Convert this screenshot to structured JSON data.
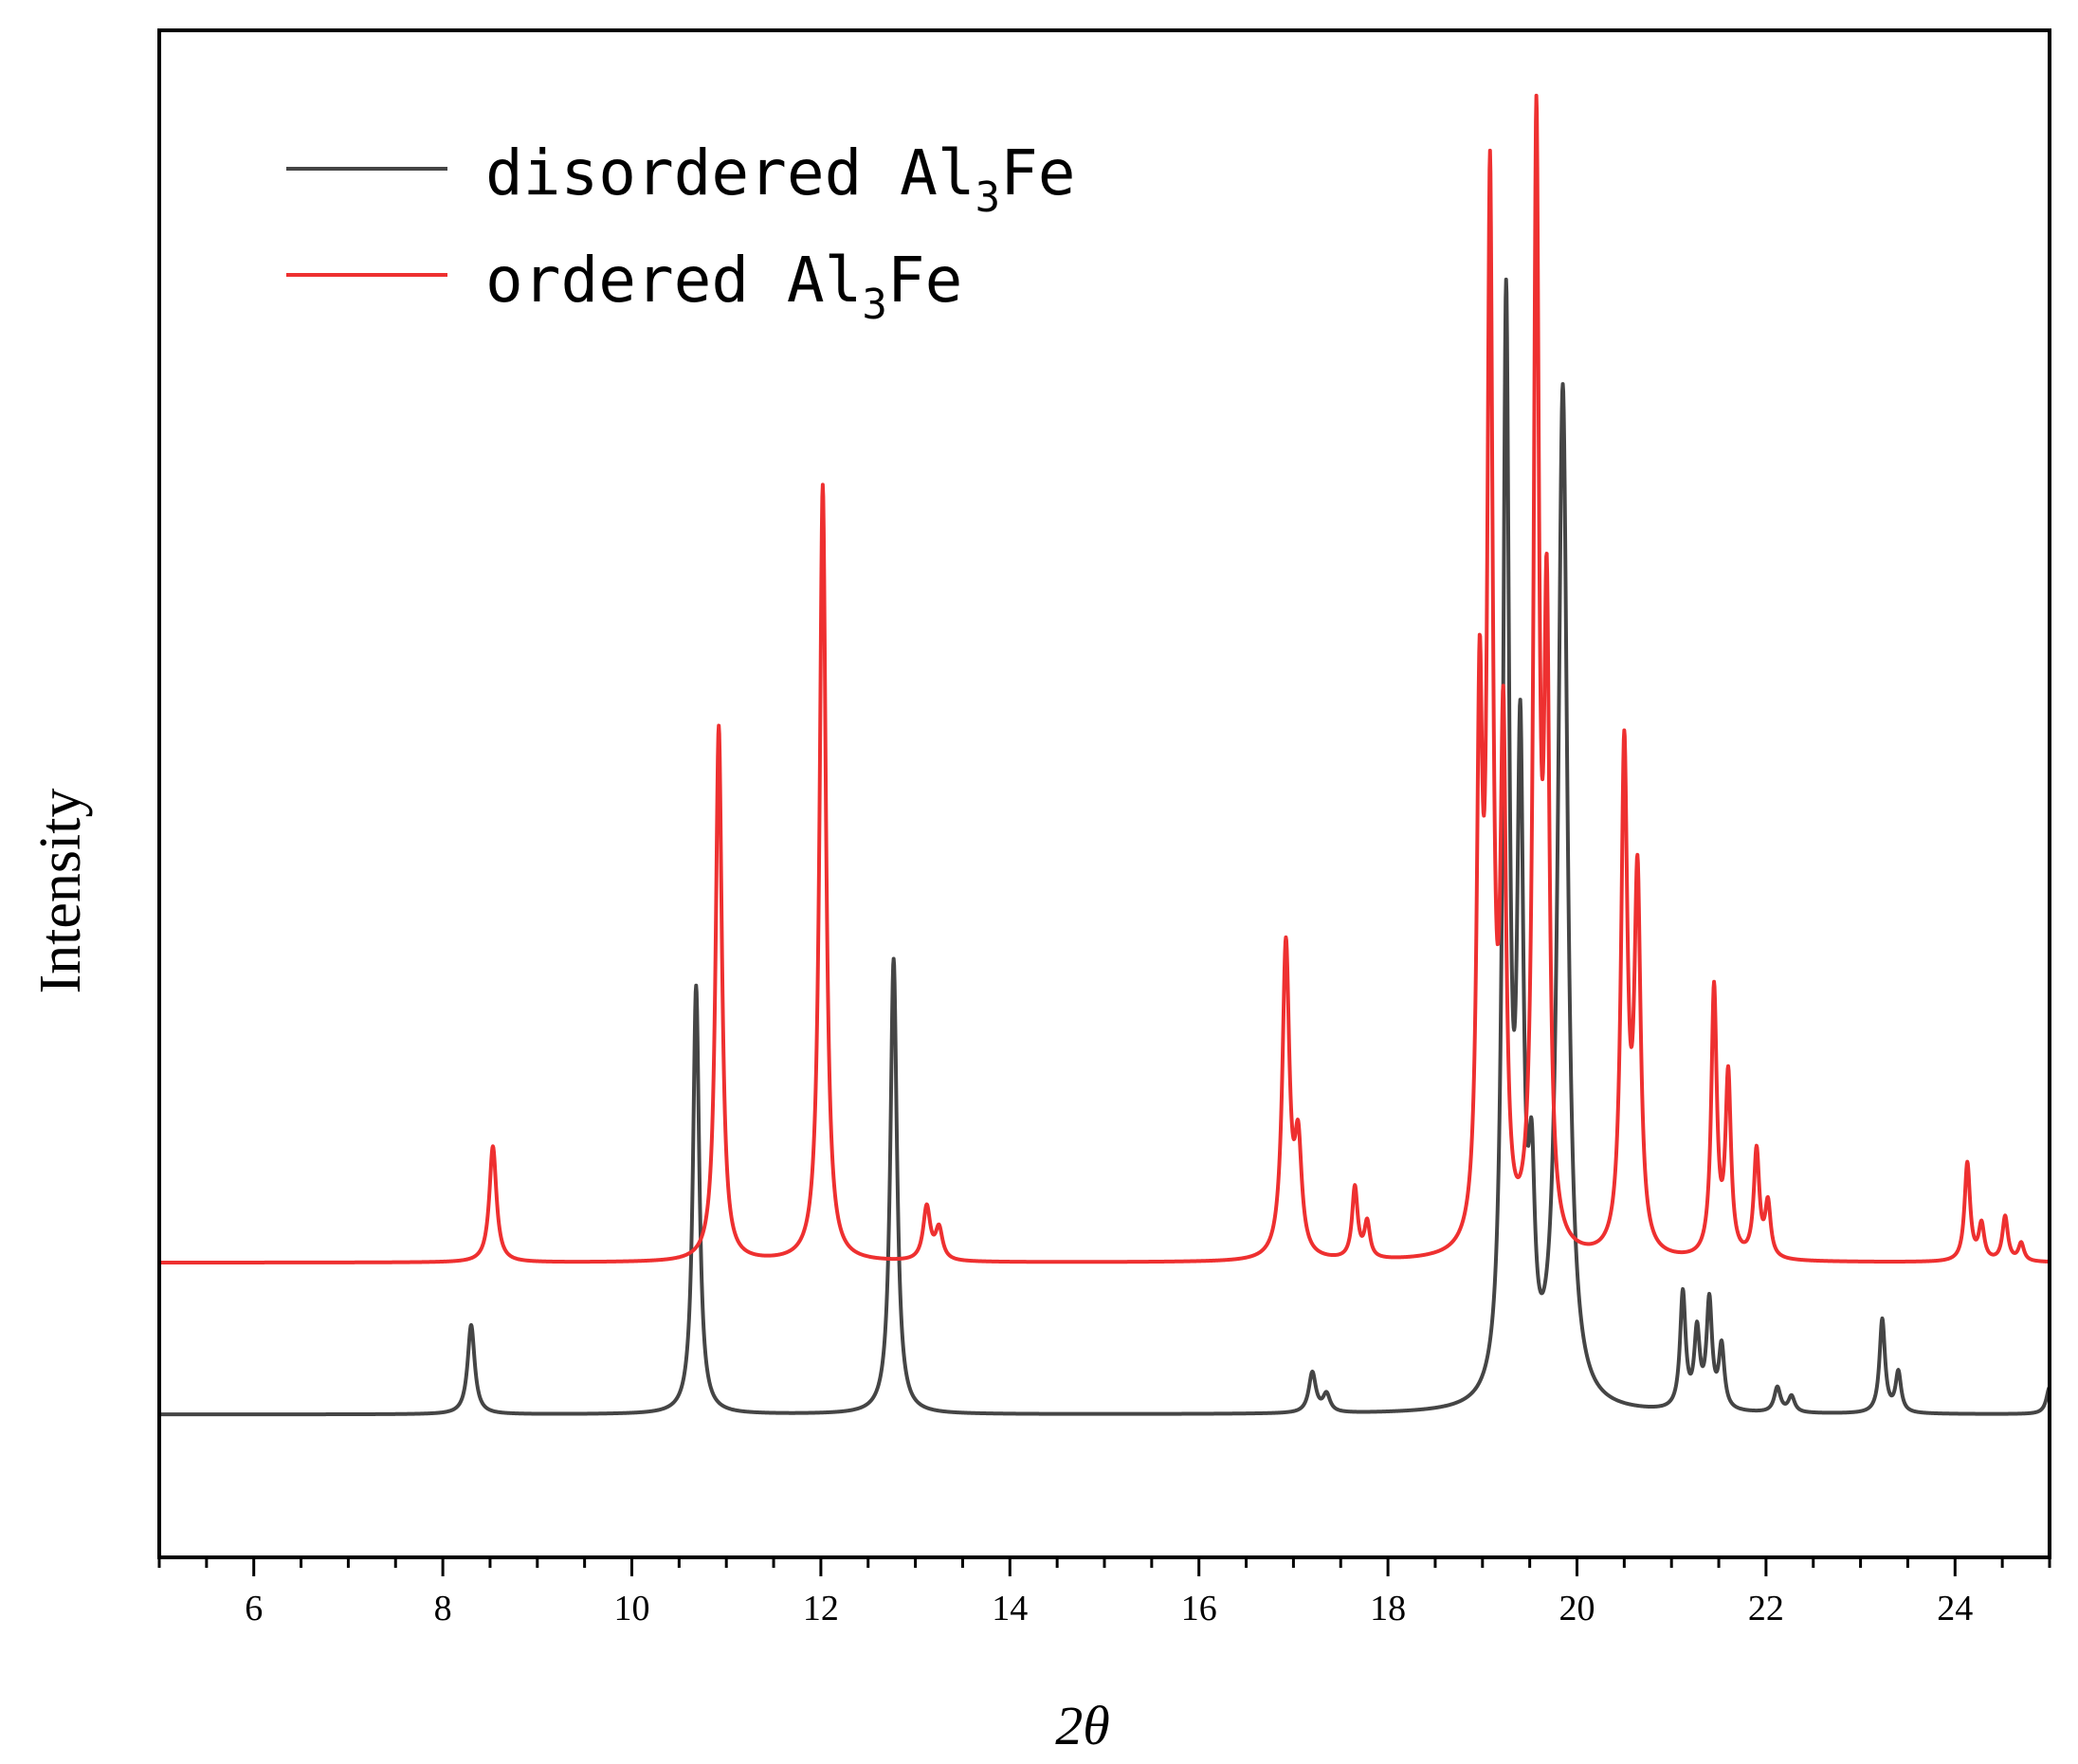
{
  "chart_data": {
    "type": "line",
    "title": "",
    "xlabel": "2θ",
    "ylabel": "Intensity",
    "xlim": [
      5,
      25
    ],
    "ylim": [
      -0.16,
      1.55
    ],
    "x_ticks": [
      6,
      8,
      10,
      12,
      14,
      16,
      18,
      20,
      22,
      24
    ],
    "y_ticks": [],
    "grid": false,
    "legend_position": "top-left",
    "series": [
      {
        "name": "disordered Al3Fe",
        "legend_main": "disordered Al",
        "legend_sub": "3",
        "legend_tail": "Fe",
        "color": "#454545",
        "baseline": 0.0,
        "peaks": [
          {
            "x": 8.3,
            "h": 0.1,
            "w": 0.045
          },
          {
            "x": 10.68,
            "h": 0.48,
            "w": 0.04
          },
          {
            "x": 12.77,
            "h": 0.51,
            "w": 0.042
          },
          {
            "x": 17.2,
            "h": 0.045,
            "w": 0.045
          },
          {
            "x": 17.35,
            "h": 0.02,
            "w": 0.045
          },
          {
            "x": 19.25,
            "h": 1.21,
            "w": 0.04
          },
          {
            "x": 19.4,
            "h": 0.68,
            "w": 0.04
          },
          {
            "x": 19.52,
            "h": 0.2,
            "w": 0.04
          },
          {
            "x": 19.85,
            "h": 1.14,
            "w": 0.06
          },
          {
            "x": 21.12,
            "h": 0.13,
            "w": 0.035
          },
          {
            "x": 21.27,
            "h": 0.085,
            "w": 0.035
          },
          {
            "x": 21.4,
            "h": 0.12,
            "w": 0.035
          },
          {
            "x": 21.53,
            "h": 0.07,
            "w": 0.035
          },
          {
            "x": 22.12,
            "h": 0.028,
            "w": 0.04
          },
          {
            "x": 22.27,
            "h": 0.018,
            "w": 0.04
          },
          {
            "x": 23.23,
            "h": 0.105,
            "w": 0.035
          },
          {
            "x": 23.4,
            "h": 0.045,
            "w": 0.035
          },
          {
            "x": 25.0,
            "h": 0.03,
            "w": 0.04
          }
        ]
      },
      {
        "name": "ordered Al3Fe",
        "legend_main": "ordered Al",
        "legend_sub": "3",
        "legend_tail": "Fe",
        "color": "#ee3030",
        "baseline": 0.17,
        "peaks": [
          {
            "x": 8.53,
            "h": 0.13,
            "w": 0.045
          },
          {
            "x": 10.92,
            "h": 0.6,
            "w": 0.04
          },
          {
            "x": 12.02,
            "h": 0.87,
            "w": 0.04
          },
          {
            "x": 13.12,
            "h": 0.06,
            "w": 0.045
          },
          {
            "x": 13.25,
            "h": 0.035,
            "w": 0.045
          },
          {
            "x": 16.92,
            "h": 0.35,
            "w": 0.045
          },
          {
            "x": 17.05,
            "h": 0.12,
            "w": 0.045
          },
          {
            "x": 17.65,
            "h": 0.08,
            "w": 0.035
          },
          {
            "x": 17.78,
            "h": 0.04,
            "w": 0.035
          },
          {
            "x": 18.97,
            "h": 0.58,
            "w": 0.035
          },
          {
            "x": 19.08,
            "h": 1.15,
            "w": 0.035
          },
          {
            "x": 19.22,
            "h": 0.55,
            "w": 0.035
          },
          {
            "x": 19.57,
            "h": 1.23,
            "w": 0.035
          },
          {
            "x": 19.68,
            "h": 0.67,
            "w": 0.035
          },
          {
            "x": 20.5,
            "h": 0.56,
            "w": 0.04
          },
          {
            "x": 20.64,
            "h": 0.41,
            "w": 0.04
          },
          {
            "x": 21.45,
            "h": 0.3,
            "w": 0.035
          },
          {
            "x": 21.6,
            "h": 0.2,
            "w": 0.035
          },
          {
            "x": 21.9,
            "h": 0.12,
            "w": 0.035
          },
          {
            "x": 22.02,
            "h": 0.06,
            "w": 0.035
          },
          {
            "x": 24.13,
            "h": 0.11,
            "w": 0.035
          },
          {
            "x": 24.28,
            "h": 0.04,
            "w": 0.035
          },
          {
            "x": 24.53,
            "h": 0.05,
            "w": 0.035
          },
          {
            "x": 24.7,
            "h": 0.02,
            "w": 0.035
          }
        ]
      }
    ]
  }
}
